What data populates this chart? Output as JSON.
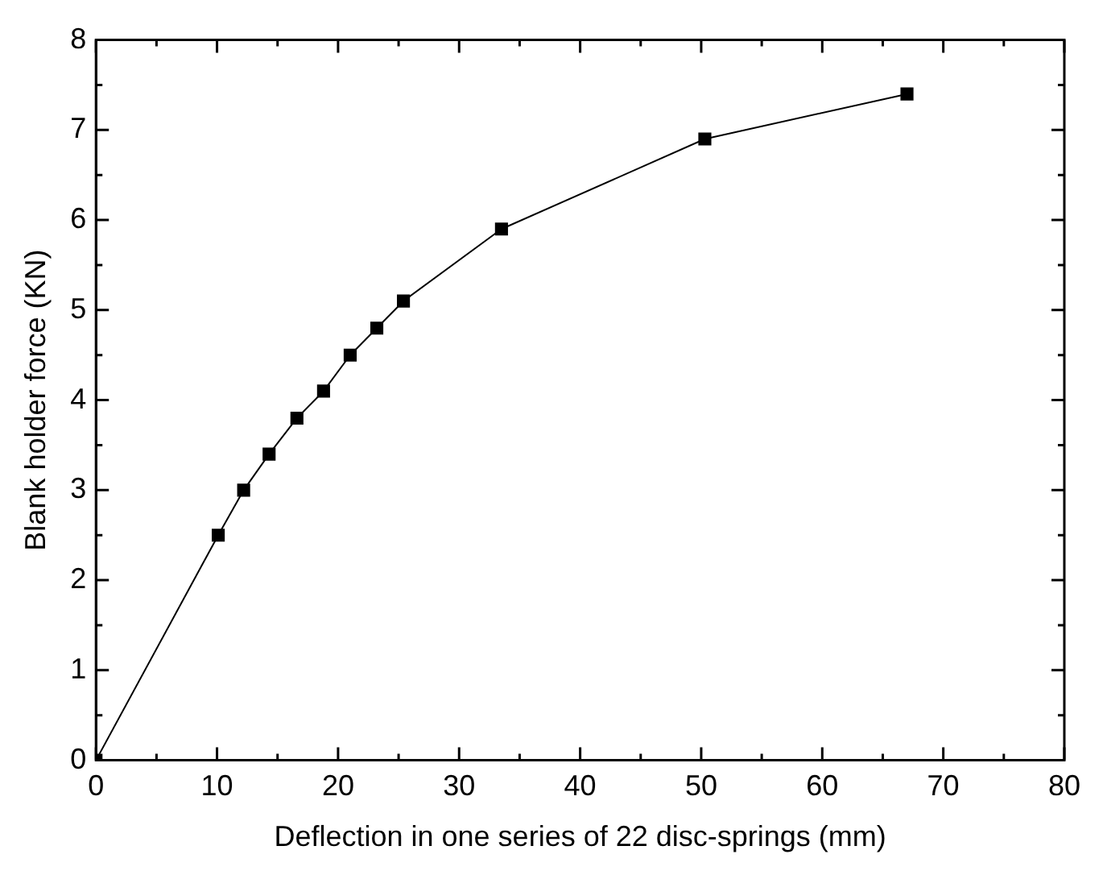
{
  "chart_data": {
    "type": "line",
    "xlabel": "Deflection in one series of 22 disc-springs (mm)",
    "ylabel": "Blank holder force (KN)",
    "x": [
      0,
      10.1,
      12.2,
      14.3,
      16.6,
      18.8,
      21,
      23.2,
      25.4,
      33.5,
      50.3,
      67
    ],
    "series": [
      {
        "color": "#000000",
        "values": [
          0,
          2.5,
          3.0,
          3.4,
          3.8,
          4.1,
          4.5,
          4.8,
          5.1,
          5.9,
          6.9,
          7.4
        ]
      }
    ],
    "xlim": [
      0,
      80
    ],
    "xticks": [
      0,
      10,
      20,
      30,
      40,
      50,
      60,
      70,
      80
    ],
    "ylim": [
      0,
      8
    ],
    "yticks": [
      0,
      1,
      2,
      3,
      4,
      5,
      6,
      7,
      8
    ],
    "grid": false,
    "legend": false,
    "marker": "square",
    "line_style": "solid"
  }
}
